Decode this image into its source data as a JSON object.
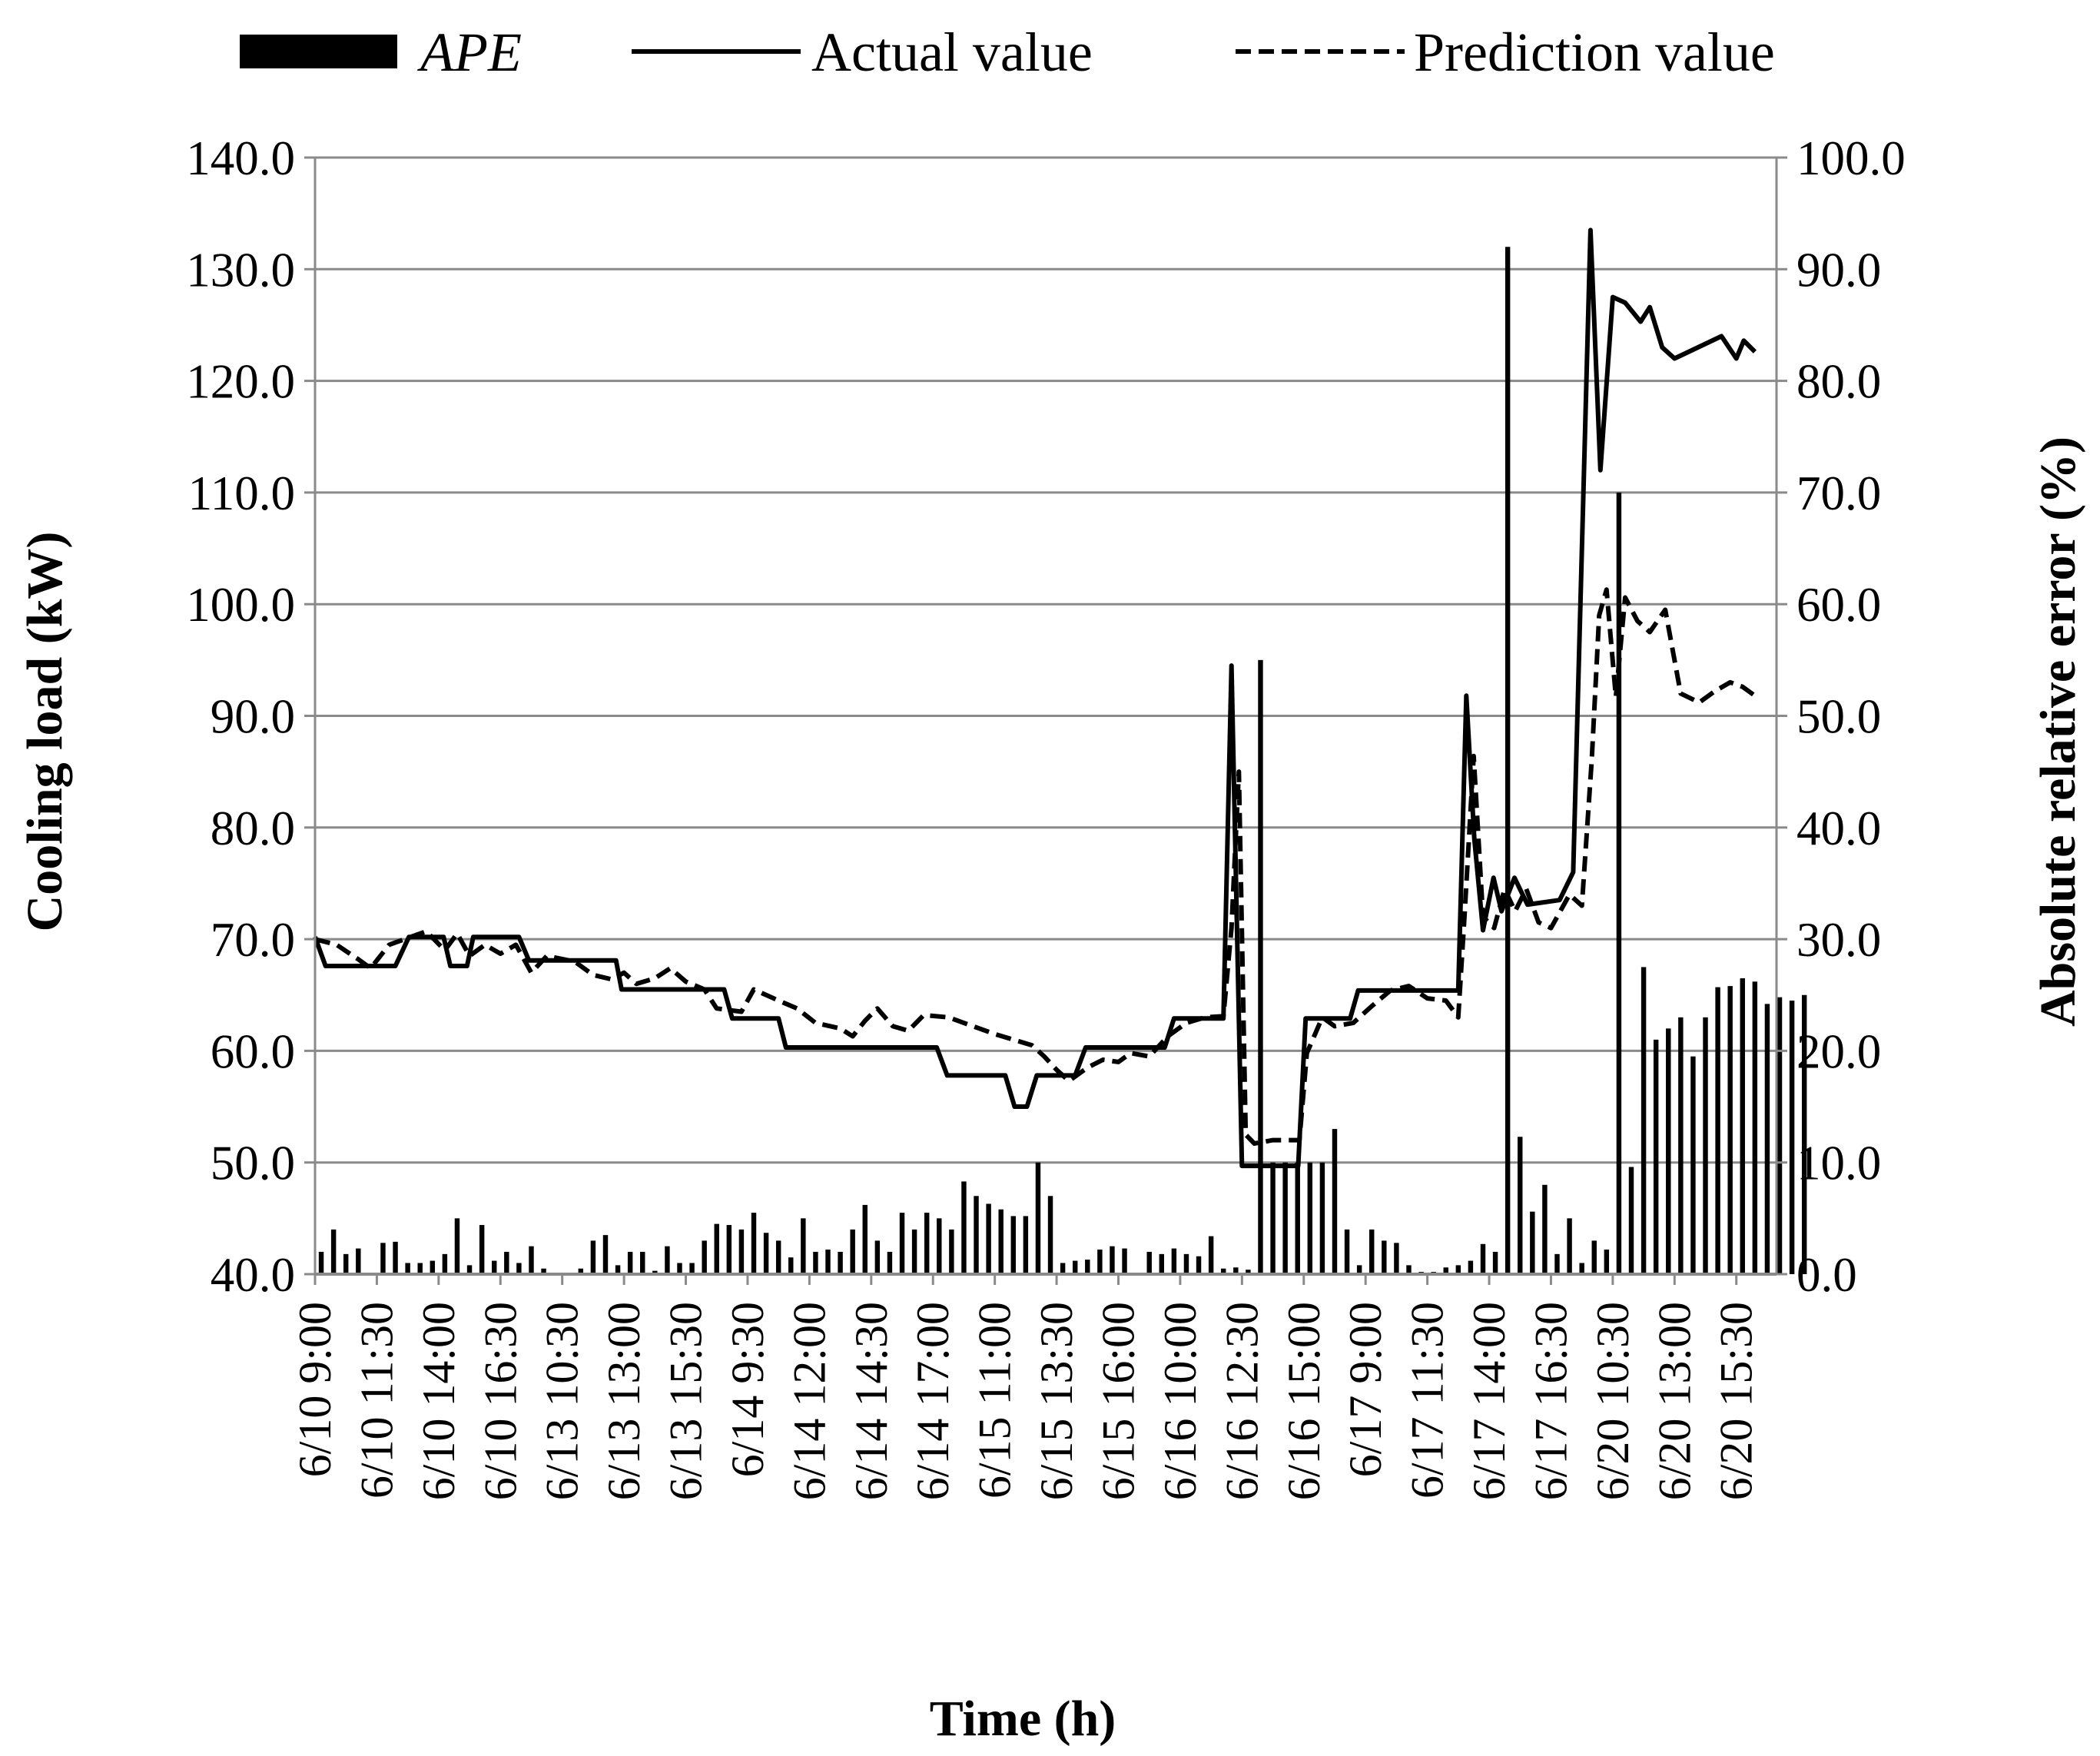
{
  "chart_data": {
    "type": "bar+line",
    "title": "",
    "xlabel": "Time (h)",
    "ylabel_left": "Cooling load (kW)",
    "ylabel_right": "Absolute relative error (%)",
    "ylim_left": [
      40,
      140
    ],
    "yticks_left": [
      "40.0",
      "50.0",
      "60.0",
      "70.0",
      "80.0",
      "90.0",
      "100.0",
      "110.0",
      "120.0",
      "130.0",
      "140.0"
    ],
    "ylim_right": [
      0,
      100
    ],
    "yticks_right": [
      "0.0",
      "10.0",
      "20.0",
      "30.0",
      "40.0",
      "50.0",
      "60.0",
      "70.0",
      "80.0",
      "90.0",
      "100.0"
    ],
    "grid": true,
    "legend_position": "top",
    "x_tick_labels": [
      "6/10 9:00",
      "6/10 11:30",
      "6/10 14:00",
      "6/10 16:30",
      "6/13 10:30",
      "6/13 13:00",
      "6/13 15:30",
      "6/14 9:30",
      "6/14 12:00",
      "6/14 14:30",
      "6/14 17:00",
      "6/15 11:00",
      "6/15 13:30",
      "6/15 16:00",
      "6/16 10:00",
      "6/16 12:30",
      "6/16 15:00",
      "6/17 9:00",
      "6/17 11:30",
      "6/17 14:00",
      "6/17 16:30",
      "6/20 10:30",
      "6/20 13:00",
      "6/20 15:30"
    ],
    "series": [
      {
        "name": "APE",
        "kind": "bar",
        "axis": "right",
        "color": "#000000",
        "values": [
          2,
          4,
          1.8,
          2.3,
          0,
          2.8,
          2.9,
          1,
          1,
          1.2,
          1.8,
          5,
          0.8,
          4.4,
          1.2,
          2,
          1,
          2.5,
          0.5,
          0,
          0,
          0.5,
          3,
          3.5,
          0.8,
          2,
          2,
          0.3,
          2.5,
          1,
          1,
          3,
          4.5,
          4.4,
          4,
          5.5,
          3.7,
          3,
          1.5,
          5,
          2,
          2.2,
          2,
          4,
          6.2,
          3,
          2,
          5.5,
          4,
          5.5,
          5,
          4,
          8.3,
          7,
          6.3,
          5.8,
          5.2,
          5.2,
          10,
          7,
          1,
          1.2,
          1.3,
          2.2,
          2.5,
          2.3,
          0,
          2,
          1.8,
          2.3,
          1.8,
          1.6,
          3.4,
          0.5,
          0.6,
          0.4,
          55,
          10,
          10,
          10,
          10,
          10,
          13,
          4,
          0.8,
          4,
          3,
          2.8,
          0.8,
          0.2,
          0.2,
          0.6,
          0.8,
          1.2,
          2.7,
          2,
          92,
          12.3,
          5.6,
          8,
          1.8,
          5,
          1,
          3,
          2.2,
          70,
          9.6,
          27.5,
          21,
          22,
          23,
          19.5,
          23,
          25.7,
          25.8,
          26.5,
          26.2,
          24.2,
          24.8,
          24.5,
          25
        ]
      },
      {
        "name": "Actual value",
        "kind": "line",
        "axis": "left",
        "dash": "solid",
        "color": "#000000",
        "points": [
          [
            0,
            70.2
          ],
          [
            0.17,
            67.6
          ],
          [
            1.3,
            67.6
          ],
          [
            1.52,
            70.2
          ],
          [
            2.08,
            70.2
          ],
          [
            2.19,
            67.6
          ],
          [
            2.46,
            67.6
          ],
          [
            2.56,
            70.2
          ],
          [
            3.3,
            70.2
          ],
          [
            3.46,
            68.1
          ],
          [
            4.87,
            68.1
          ],
          [
            4.96,
            65.5
          ],
          [
            6.62,
            65.5
          ],
          [
            6.75,
            62.9
          ],
          [
            7.5,
            62.9
          ],
          [
            7.62,
            60.3
          ],
          [
            10.06,
            60.3
          ],
          [
            10.23,
            57.8
          ],
          [
            11.17,
            57.8
          ],
          [
            11.32,
            55.0
          ],
          [
            11.52,
            55.0
          ],
          [
            11.68,
            57.8
          ],
          [
            12.3,
            57.8
          ],
          [
            12.47,
            60.3
          ],
          [
            13.75,
            60.3
          ],
          [
            13.9,
            62.9
          ],
          [
            14.7,
            62.9
          ],
          [
            14.83,
            94.5
          ],
          [
            15.0,
            49.7
          ],
          [
            15.91,
            49.7
          ],
          [
            16.03,
            62.9
          ],
          [
            16.75,
            62.9
          ],
          [
            16.88,
            65.4
          ],
          [
            18.5,
            65.4
          ],
          [
            18.63,
            91.8
          ],
          [
            18.76,
            79.0
          ],
          [
            18.9,
            70.8
          ],
          [
            19.07,
            75.5
          ],
          [
            19.2,
            72.5
          ],
          [
            19.41,
            75.5
          ],
          [
            19.62,
            73.1
          ],
          [
            20.14,
            73.5
          ],
          [
            20.36,
            76.0
          ],
          [
            20.64,
            133.5
          ],
          [
            20.8,
            112.0
          ],
          [
            21.0,
            127.5
          ],
          [
            21.2,
            127.0
          ],
          [
            21.45,
            125.3
          ],
          [
            21.6,
            126.6
          ],
          [
            21.8,
            123.0
          ],
          [
            22.0,
            122.0
          ],
          [
            22.76,
            124.0
          ],
          [
            23.0,
            122.0
          ],
          [
            23.12,
            123.6
          ],
          [
            23.3,
            122.6
          ]
        ]
      },
      {
        "name": "Prediction value",
        "kind": "line",
        "axis": "left",
        "dash": "dashed",
        "color": "#000000",
        "points": [
          [
            0,
            70.0
          ],
          [
            0.35,
            69.5
          ],
          [
            0.7,
            68.2
          ],
          [
            0.9,
            67.4
          ],
          [
            1.2,
            69.5
          ],
          [
            1.45,
            70.0
          ],
          [
            1.8,
            70.7
          ],
          [
            2.1,
            69.0
          ],
          [
            2.3,
            70.5
          ],
          [
            2.5,
            68.5
          ],
          [
            2.75,
            69.5
          ],
          [
            3.0,
            68.7
          ],
          [
            3.25,
            69.5
          ],
          [
            3.5,
            67.0
          ],
          [
            3.75,
            68.5
          ],
          [
            4.2,
            68.0
          ],
          [
            4.5,
            66.8
          ],
          [
            4.8,
            66.4
          ],
          [
            5.0,
            67.0
          ],
          [
            5.2,
            66.0
          ],
          [
            5.5,
            66.5
          ],
          [
            5.75,
            67.4
          ],
          [
            6.0,
            66.2
          ],
          [
            6.3,
            65.5
          ],
          [
            6.5,
            63.8
          ],
          [
            6.9,
            63.5
          ],
          [
            7.1,
            65.5
          ],
          [
            7.5,
            64.5
          ],
          [
            7.8,
            63.8
          ],
          [
            8.1,
            62.5
          ],
          [
            8.5,
            62.0
          ],
          [
            8.7,
            61.3
          ],
          [
            8.9,
            62.7
          ],
          [
            9.1,
            63.8
          ],
          [
            9.35,
            62.2
          ],
          [
            9.6,
            61.8
          ],
          [
            9.85,
            63.2
          ],
          [
            10.25,
            63.0
          ],
          [
            10.6,
            62.3
          ],
          [
            11.0,
            61.5
          ],
          [
            11.3,
            61.0
          ],
          [
            11.6,
            60.5
          ],
          [
            11.8,
            59.5
          ],
          [
            12.0,
            58.3
          ],
          [
            12.2,
            57.3
          ],
          [
            12.5,
            58.5
          ],
          [
            12.75,
            59.2
          ],
          [
            13.0,
            59.0
          ],
          [
            13.2,
            59.8
          ],
          [
            13.5,
            59.5
          ],
          [
            13.8,
            61.3
          ],
          [
            14.1,
            62.5
          ],
          [
            14.4,
            63.0
          ],
          [
            14.7,
            63.1
          ],
          [
            14.83,
            71.0
          ],
          [
            14.95,
            85.0
          ],
          [
            15.06,
            52.5
          ],
          [
            15.2,
            51.7
          ],
          [
            15.5,
            52.0
          ],
          [
            15.93,
            52.0
          ],
          [
            16.05,
            59.8
          ],
          [
            16.3,
            63.0
          ],
          [
            16.5,
            62.2
          ],
          [
            16.8,
            62.5
          ],
          [
            17.1,
            64.0
          ],
          [
            17.4,
            65.4
          ],
          [
            17.7,
            65.8
          ],
          [
            18.0,
            64.7
          ],
          [
            18.3,
            64.5
          ],
          [
            18.5,
            63.0
          ],
          [
            18.6,
            72.0
          ],
          [
            18.75,
            86.4
          ],
          [
            18.9,
            72.0
          ],
          [
            19.08,
            71.0
          ],
          [
            19.25,
            74.5
          ],
          [
            19.42,
            72.5
          ],
          [
            19.6,
            74.5
          ],
          [
            19.8,
            71.5
          ],
          [
            20.0,
            71.0
          ],
          [
            20.3,
            74.0
          ],
          [
            20.5,
            73.0
          ],
          [
            20.66,
            86.0
          ],
          [
            20.78,
            99.0
          ],
          [
            20.9,
            101.3
          ],
          [
            21.05,
            91.7
          ],
          [
            21.2,
            100.6
          ],
          [
            21.4,
            98.5
          ],
          [
            21.6,
            97.5
          ],
          [
            21.85,
            99.5
          ],
          [
            22.1,
            92.0
          ],
          [
            22.4,
            91.2
          ],
          [
            22.65,
            92.2
          ],
          [
            22.9,
            93.0
          ],
          [
            23.1,
            92.6
          ],
          [
            23.3,
            91.8
          ]
        ]
      }
    ]
  },
  "legend": [
    {
      "label": "APE",
      "kind": "bar"
    },
    {
      "label": "Actual value",
      "kind": "line-solid"
    },
    {
      "label": "Prediction value",
      "kind": "line-dashed"
    }
  ]
}
